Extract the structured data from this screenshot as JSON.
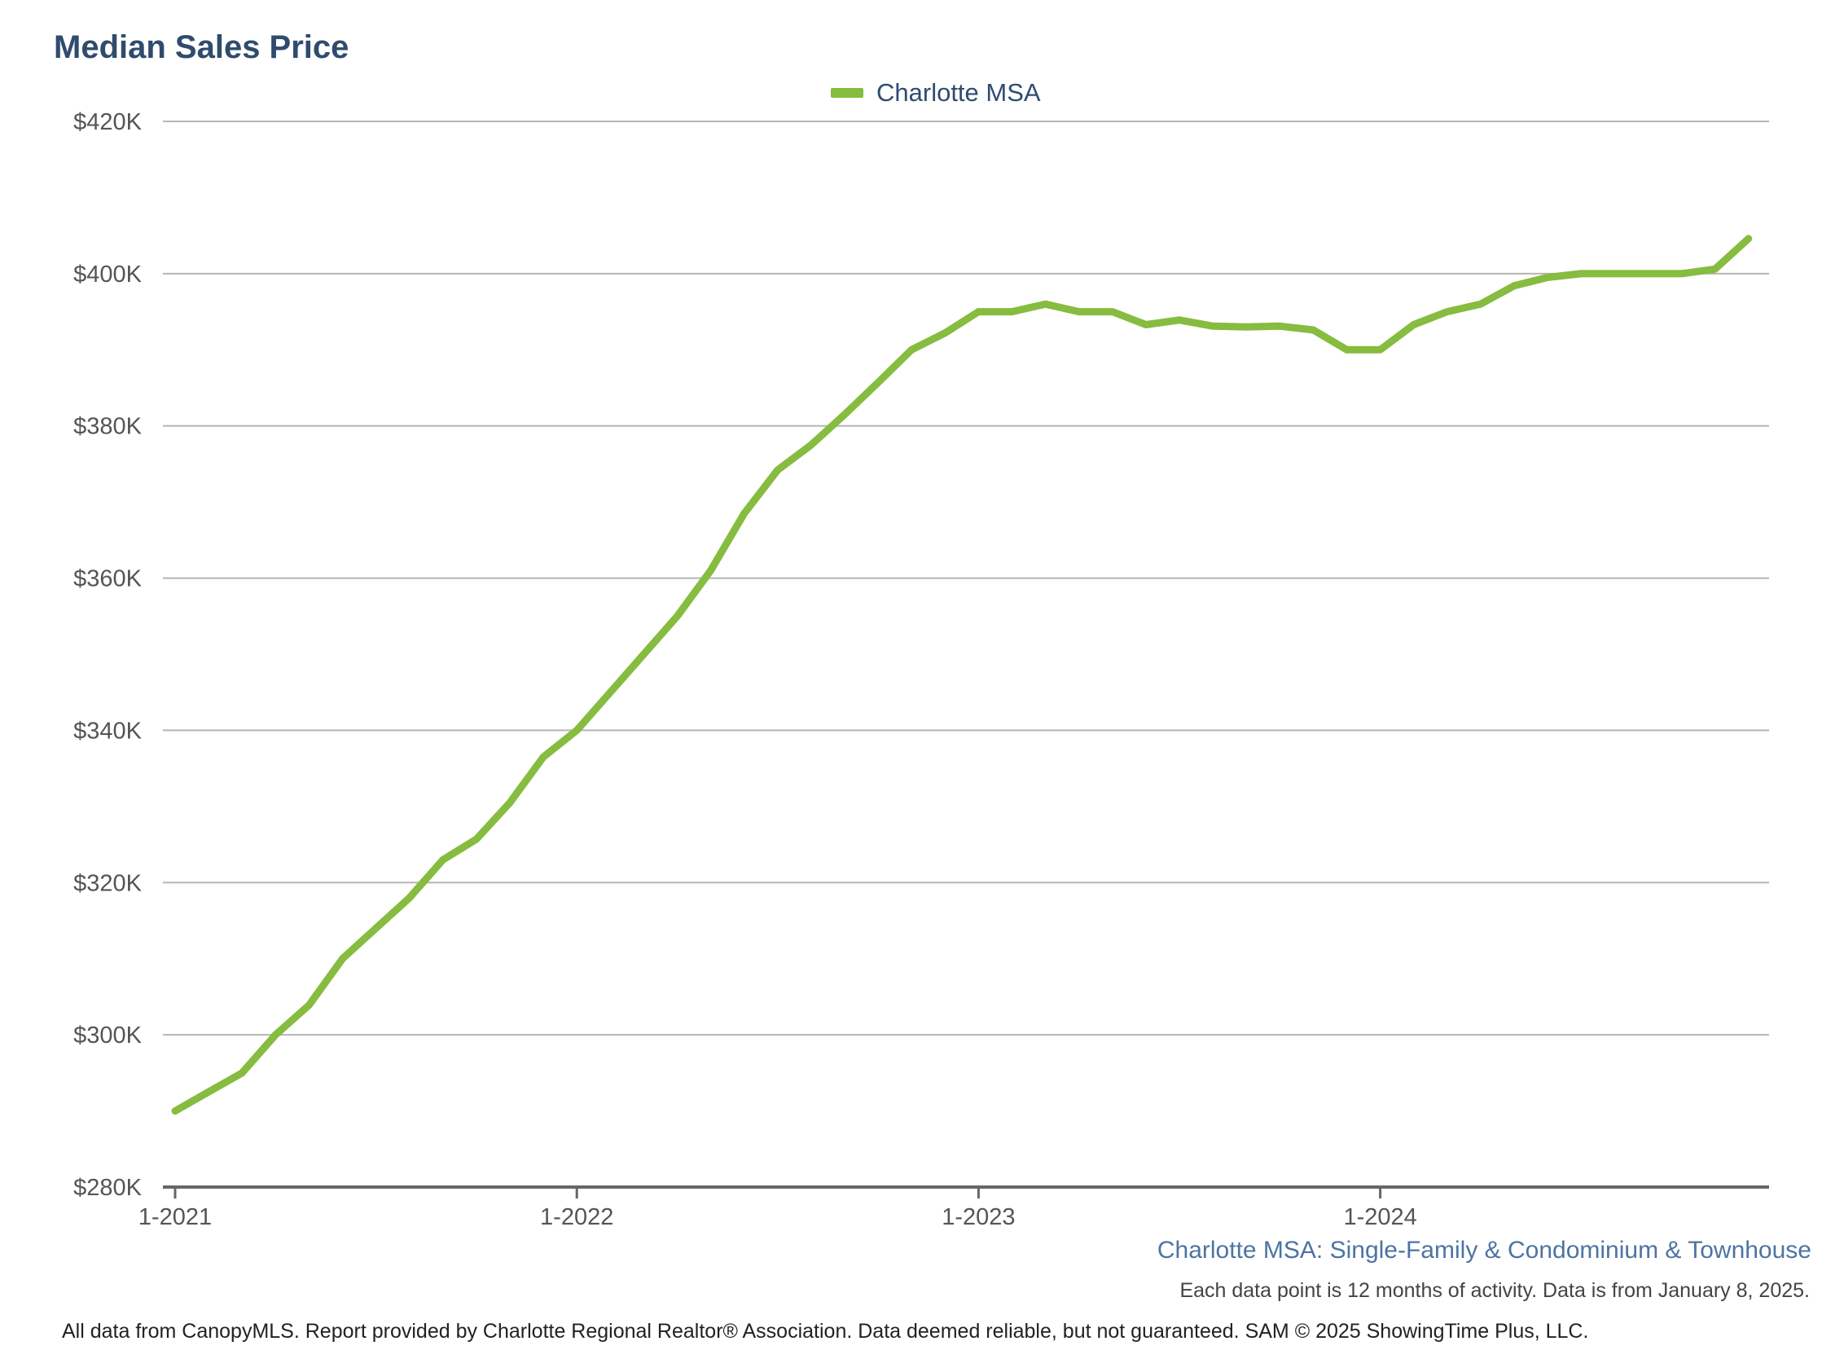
{
  "colors": {
    "line": "#86bc3f",
    "title": "#2f4b6e",
    "subtitle": "#4d74a3",
    "grid": "#b5b5b5",
    "axis": "#666666"
  },
  "title": "Median Sales Price",
  "subtitle": "Charlotte MSA: Single-Family & Condominium & Townhouse",
  "note": "Each data point is 12 months of activity. Data is from January 8, 2025.",
  "footer": "All data from CanopyMLS. Report provided by Charlotte Regional Realtor® Association. Data deemed reliable, but not guaranteed. SAM © 2025 ShowingTime Plus, LLC.",
  "chart_data": {
    "type": "line",
    "xlabel": "",
    "ylabel": "",
    "x_ticks": [
      "1-2021",
      "1-2022",
      "1-2023",
      "1-2024"
    ],
    "y_ticks": [
      "$280K",
      "$300K",
      "$320K",
      "$340K",
      "$360K",
      "$380K",
      "$400K",
      "$420K"
    ],
    "ylim": [
      280000,
      420000
    ],
    "grid": true,
    "legend": "top-center",
    "x": [
      "2021-01",
      "2021-02",
      "2021-03",
      "2021-04",
      "2021-05",
      "2021-06",
      "2021-07",
      "2021-08",
      "2021-09",
      "2021-10",
      "2021-11",
      "2021-12",
      "2022-01",
      "2022-02",
      "2022-03",
      "2022-04",
      "2022-05",
      "2022-06",
      "2022-07",
      "2022-08",
      "2022-09",
      "2022-10",
      "2022-11",
      "2022-12",
      "2023-01",
      "2023-02",
      "2023-03",
      "2023-04",
      "2023-05",
      "2023-06",
      "2023-07",
      "2023-08",
      "2023-09",
      "2023-10",
      "2023-11",
      "2023-12",
      "2024-01",
      "2024-02",
      "2024-03",
      "2024-04",
      "2024-05",
      "2024-06",
      "2024-07",
      "2024-08",
      "2024-09",
      "2024-10",
      "2024-11",
      "2024-12"
    ],
    "series": [
      {
        "name": "Charlotte MSA",
        "values": [
          290000,
          292500,
          295000,
          300000,
          303900,
          310000,
          314000,
          318000,
          323000,
          325700,
          330500,
          336500,
          340000,
          345000,
          350000,
          355000,
          361000,
          368500,
          374200,
          377500,
          381500,
          385700,
          390000,
          392200,
          395000,
          395000,
          396000,
          395000,
          395000,
          393300,
          393900,
          393100,
          393000,
          393100,
          392600,
          390000,
          390000,
          393300,
          395000,
          396000,
          398400,
          399500,
          400000,
          400000,
          400000,
          400000,
          400600,
          404600
        ]
      }
    ]
  }
}
